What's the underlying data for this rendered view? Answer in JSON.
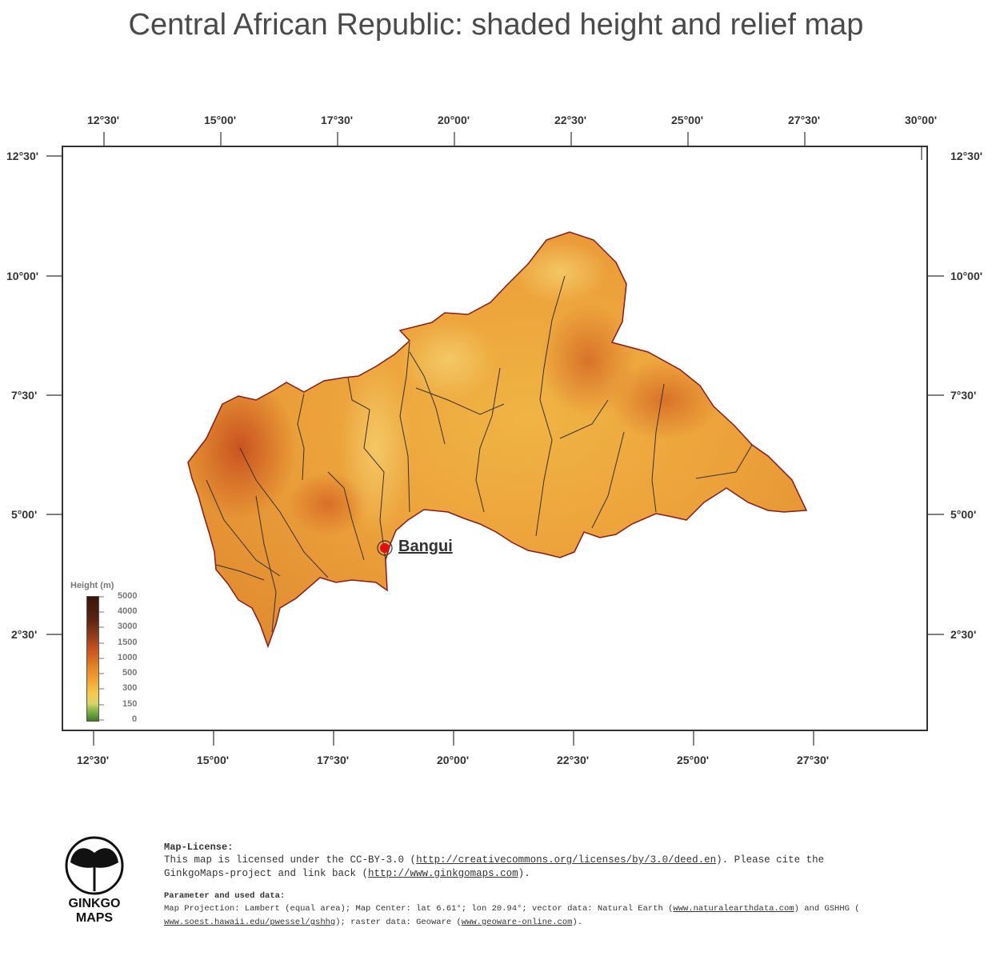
{
  "title": "Central African Republic: shaded height and relief map",
  "axes": {
    "top_labels": [
      "12°30'",
      "15°00'",
      "17°30'",
      "20°00'",
      "22°30'",
      "25°00'",
      "27°30'",
      "30°00'"
    ],
    "bottom_labels": [
      "12°30'",
      "15°00'",
      "17°30'",
      "20°00'",
      "22°30'",
      "25°00'",
      "27°30'"
    ],
    "left_labels": [
      "12°30'",
      "10°00'",
      "7°30'",
      "5°00'",
      "2°30'"
    ],
    "right_labels": [
      "12°30'",
      "10°00'",
      "7°30'",
      "5°00'",
      "2°30'"
    ]
  },
  "city": {
    "name": "Bangui"
  },
  "legend": {
    "title": "Height  (m)",
    "levels": [
      "5000",
      "4000",
      "3000",
      "1500",
      "1000",
      "500",
      "300",
      "150",
      "0"
    ]
  },
  "logo": {
    "line1": "GINKGO",
    "line2": "MAPS",
    "icon": "ginkgo-leaf-icon"
  },
  "license": {
    "heading": "Map-License:",
    "line1_prefix": "This map is licensed under the CC-BY-3.0 (",
    "line1_link": "http://creativecommons.org/licenses/by/3.0/deed.en",
    "line1_suffix": ").  Please cite the",
    "line2_prefix": "GinkgoMaps-project and link back (",
    "line2_link": "http://www.ginkgomaps.com",
    "line2_suffix": ")."
  },
  "params": {
    "heading": "Parameter and used data:",
    "line1_prefix": "Map Projection: Lambert (equal area); Map Center: lat 6.61°; lon 20.94°; vector data: Natural Earth (",
    "line1_link": "www.naturalearthdata.com",
    "line1_suffix": ") and GSHHG (",
    "line2_link1": "www.soest.hawaii.edu/pwessel/gshhg",
    "line2_mid": "); raster data: Geoware (",
    "line2_link2": "www.geoware-online.com",
    "line2_suffix": ")."
  },
  "colors": {
    "terrain_low": "#f2b84a",
    "terrain_high": "#c4461c",
    "border": "#8b1a1a",
    "rivers": "#333333",
    "city_marker": "#e01010"
  }
}
